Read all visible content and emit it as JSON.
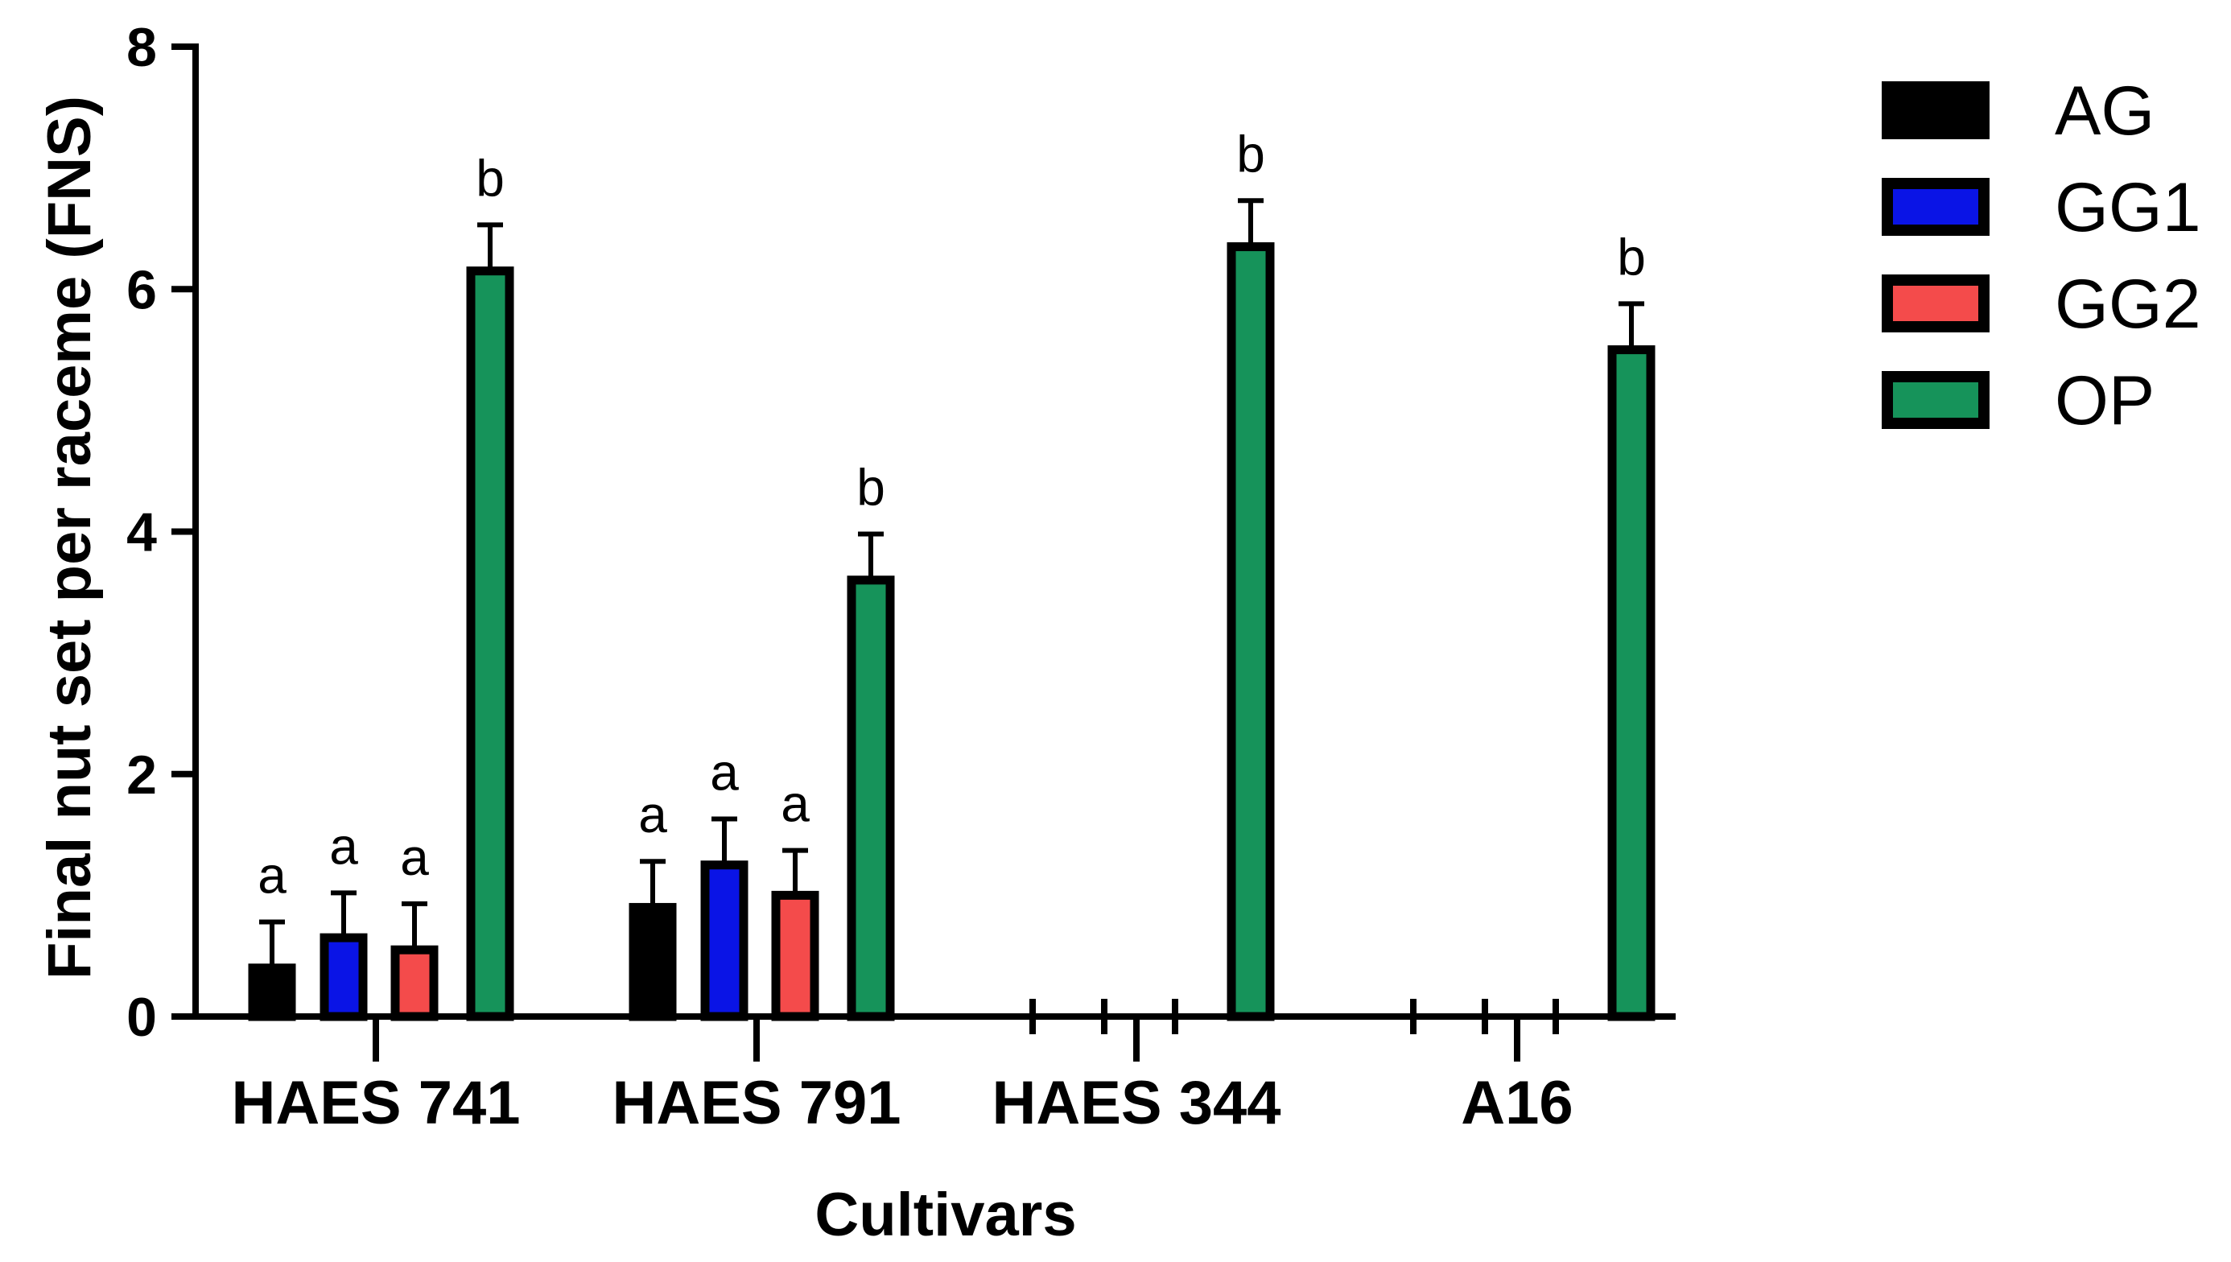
{
  "chart_data": {
    "type": "bar",
    "title": "",
    "xlabel": "Cultivars",
    "ylabel": "Final nut set per raceme (FNS)",
    "ylim": [
      0,
      8
    ],
    "yticks": [
      "0",
      "2",
      "4",
      "6",
      "8"
    ],
    "categories": [
      "HAES 741",
      "HAES 791",
      "HAES 344",
      "A16"
    ],
    "legend_position": "right",
    "series": [
      {
        "name": "AG",
        "color": "#000000",
        "values": [
          0.4,
          0.9,
          null,
          null
        ],
        "errors": [
          0.38,
          0.38,
          null,
          null
        ],
        "labels": [
          "a",
          "a",
          "",
          ""
        ]
      },
      {
        "name": "GG1",
        "color": "#0a14e6",
        "values": [
          0.65,
          1.25,
          null,
          null
        ],
        "errors": [
          0.37,
          0.38,
          null,
          null
        ],
        "labels": [
          "a",
          "a",
          "",
          ""
        ]
      },
      {
        "name": "GG2",
        "color": "#f44b4b",
        "values": [
          0.55,
          1.0,
          null,
          null
        ],
        "errors": [
          0.38,
          0.37,
          null,
          null
        ],
        "labels": [
          "a",
          "a",
          "",
          ""
        ]
      },
      {
        "name": "OP",
        "color": "#16935a",
        "values": [
          6.15,
          3.6,
          6.35,
          5.5
        ],
        "errors": [
          0.38,
          0.38,
          0.38,
          0.38
        ],
        "labels": [
          "b",
          "b",
          "b",
          "b"
        ]
      }
    ]
  }
}
